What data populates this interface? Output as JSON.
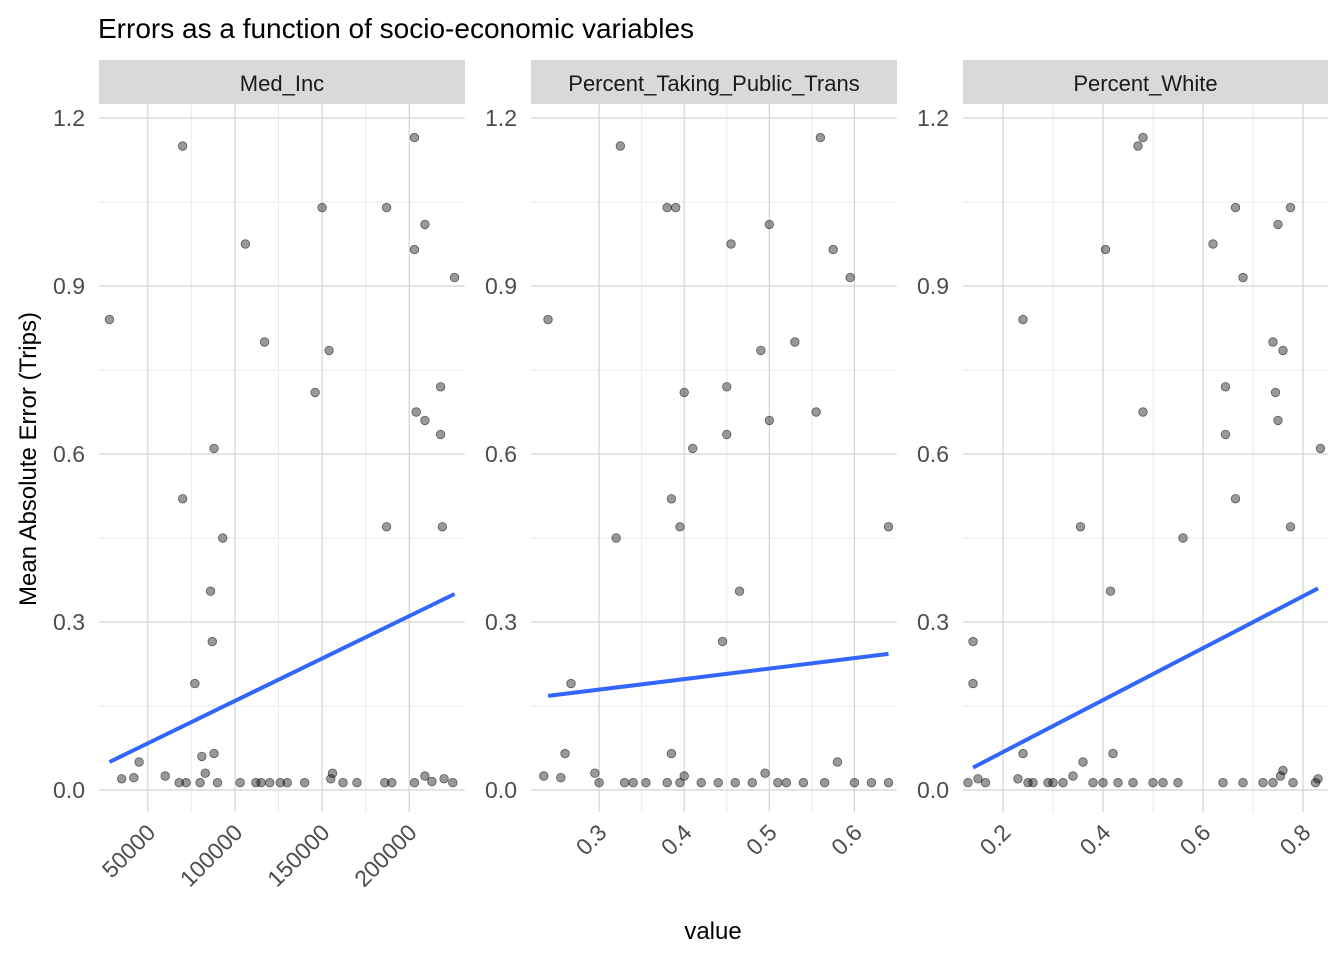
{
  "chart_data": {
    "type": "scatter",
    "title": "Errors as a function of socio-economic variables",
    "xlabel": "value",
    "ylabel": "Mean Absolute Error (Trips)",
    "ylim": [
      0,
      1.2
    ],
    "y_ticks": [
      0,
      0.3,
      0.6,
      0.9,
      1.2
    ],
    "y_tick_labels": [
      "0.0",
      "0.3",
      "0.6",
      "0.9",
      "1.2"
    ],
    "grid": true,
    "point_color": "#000000",
    "point_alpha": 0.4,
    "line_color": "#3366ff",
    "strip_color": "#d9d9d9",
    "facets": [
      {
        "name": "Med_Inc",
        "x_ticks": [
          50000,
          100000,
          150000,
          200000
        ],
        "x_tick_labels": [
          "50000",
          "100000",
          "150000",
          "200000"
        ],
        "xlim": [
          22000,
          232000
        ],
        "trend": {
          "x": [
            28000,
            226000
          ],
          "y": [
            0.05,
            0.35
          ]
        },
        "points": [
          [
            28000,
            0.84
          ],
          [
            70000,
            1.15
          ],
          [
            70000,
            0.52
          ],
          [
            77000,
            0.19
          ],
          [
            81000,
            0.06
          ],
          [
            83000,
            0.03
          ],
          [
            86000,
            0.355
          ],
          [
            87000,
            0.265
          ],
          [
            88000,
            0.61
          ],
          [
            88000,
            0.065
          ],
          [
            93000,
            0.45
          ],
          [
            106000,
            0.975
          ],
          [
            117000,
            0.8
          ],
          [
            146000,
            0.71
          ],
          [
            150000,
            1.04
          ],
          [
            154000,
            0.785
          ],
          [
            187000,
            1.04
          ],
          [
            187000,
            0.47
          ],
          [
            203000,
            1.165
          ],
          [
            203000,
            0.965
          ],
          [
            209000,
            1.01
          ],
          [
            204000,
            0.675
          ],
          [
            209000,
            0.66
          ],
          [
            218000,
            0.72
          ],
          [
            218000,
            0.635
          ],
          [
            219000,
            0.47
          ],
          [
            226000,
            0.915
          ],
          [
            35000,
            0.02
          ],
          [
            42000,
            0.022
          ],
          [
            45000,
            0.05
          ],
          [
            60000,
            0.025
          ],
          [
            68000,
            0.013
          ],
          [
            72000,
            0.013
          ],
          [
            80000,
            0.013
          ],
          [
            90000,
            0.013
          ],
          [
            103000,
            0.013
          ],
          [
            112000,
            0.013
          ],
          [
            115000,
            0.013
          ],
          [
            120000,
            0.013
          ],
          [
            126000,
            0.013
          ],
          [
            130000,
            0.013
          ],
          [
            140000,
            0.013
          ],
          [
            155000,
            0.02
          ],
          [
            156000,
            0.03
          ],
          [
            162000,
            0.013
          ],
          [
            170000,
            0.013
          ],
          [
            186000,
            0.013
          ],
          [
            190000,
            0.013
          ],
          [
            203000,
            0.013
          ],
          [
            209000,
            0.025
          ],
          [
            213000,
            0.015
          ],
          [
            220000,
            0.02
          ],
          [
            225000,
            0.013
          ]
        ]
      },
      {
        "name": "Percent_Taking_Public_Trans",
        "x_ticks": [
          0.3,
          0.4,
          0.5,
          0.6
        ],
        "x_tick_labels": [
          "0.3",
          "0.4",
          "0.5",
          "0.6"
        ],
        "xlim": [
          0.22,
          0.65
        ],
        "trend": {
          "x": [
            0.24,
            0.64
          ],
          "y": [
            0.168,
            0.243
          ]
        },
        "points": [
          [
            0.24,
            0.84
          ],
          [
            0.325,
            1.15
          ],
          [
            0.38,
            1.04
          ],
          [
            0.39,
            1.04
          ],
          [
            0.455,
            0.975
          ],
          [
            0.5,
            1.01
          ],
          [
            0.56,
            1.165
          ],
          [
            0.575,
            0.965
          ],
          [
            0.595,
            0.915
          ],
          [
            0.49,
            0.785
          ],
          [
            0.53,
            0.8
          ],
          [
            0.4,
            0.71
          ],
          [
            0.45,
            0.72
          ],
          [
            0.45,
            0.635
          ],
          [
            0.5,
            0.66
          ],
          [
            0.555,
            0.675
          ],
          [
            0.41,
            0.61
          ],
          [
            0.385,
            0.52
          ],
          [
            0.395,
            0.47
          ],
          [
            0.32,
            0.45
          ],
          [
            0.465,
            0.355
          ],
          [
            0.445,
            0.265
          ],
          [
            0.267,
            0.19
          ],
          [
            0.26,
            0.065
          ],
          [
            0.385,
            0.065
          ],
          [
            0.64,
            0.47
          ],
          [
            0.235,
            0.025
          ],
          [
            0.255,
            0.022
          ],
          [
            0.295,
            0.03
          ],
          [
            0.3,
            0.013
          ],
          [
            0.33,
            0.013
          ],
          [
            0.34,
            0.013
          ],
          [
            0.355,
            0.013
          ],
          [
            0.38,
            0.013
          ],
          [
            0.395,
            0.013
          ],
          [
            0.4,
            0.025
          ],
          [
            0.42,
            0.013
          ],
          [
            0.44,
            0.013
          ],
          [
            0.46,
            0.013
          ],
          [
            0.48,
            0.013
          ],
          [
            0.495,
            0.03
          ],
          [
            0.51,
            0.013
          ],
          [
            0.52,
            0.013
          ],
          [
            0.54,
            0.013
          ],
          [
            0.565,
            0.013
          ],
          [
            0.58,
            0.05
          ],
          [
            0.6,
            0.013
          ],
          [
            0.62,
            0.013
          ],
          [
            0.64,
            0.013
          ]
        ]
      },
      {
        "name": "Percent_White",
        "x_ticks": [
          0.2,
          0.4,
          0.6,
          0.8
        ],
        "x_tick_labels": [
          "0.2",
          "0.4",
          "0.6",
          "0.8"
        ],
        "xlim": [
          0.12,
          0.85
        ],
        "trend": {
          "x": [
            0.14,
            0.83
          ],
          "y": [
            0.04,
            0.36
          ]
        },
        "points": [
          [
            0.14,
            0.265
          ],
          [
            0.14,
            0.19
          ],
          [
            0.24,
            0.84
          ],
          [
            0.24,
            0.065
          ],
          [
            0.355,
            0.47
          ],
          [
            0.405,
            0.965
          ],
          [
            0.415,
            0.355
          ],
          [
            0.42,
            0.065
          ],
          [
            0.47,
            1.15
          ],
          [
            0.48,
            1.165
          ],
          [
            0.48,
            0.675
          ],
          [
            0.56,
            0.45
          ],
          [
            0.62,
            0.975
          ],
          [
            0.645,
            0.72
          ],
          [
            0.645,
            0.635
          ],
          [
            0.665,
            1.04
          ],
          [
            0.665,
            0.52
          ],
          [
            0.68,
            0.915
          ],
          [
            0.74,
            0.8
          ],
          [
            0.745,
            0.71
          ],
          [
            0.75,
            1.01
          ],
          [
            0.75,
            0.66
          ],
          [
            0.76,
            0.785
          ],
          [
            0.775,
            1.04
          ],
          [
            0.775,
            0.47
          ],
          [
            0.835,
            0.61
          ],
          [
            0.13,
            0.013
          ],
          [
            0.15,
            0.02
          ],
          [
            0.165,
            0.013
          ],
          [
            0.23,
            0.02
          ],
          [
            0.25,
            0.013
          ],
          [
            0.26,
            0.013
          ],
          [
            0.29,
            0.013
          ],
          [
            0.3,
            0.013
          ],
          [
            0.32,
            0.013
          ],
          [
            0.34,
            0.025
          ],
          [
            0.36,
            0.05
          ],
          [
            0.38,
            0.013
          ],
          [
            0.4,
            0.013
          ],
          [
            0.43,
            0.013
          ],
          [
            0.46,
            0.013
          ],
          [
            0.5,
            0.013
          ],
          [
            0.52,
            0.013
          ],
          [
            0.55,
            0.013
          ],
          [
            0.64,
            0.013
          ],
          [
            0.68,
            0.013
          ],
          [
            0.72,
            0.013
          ],
          [
            0.74,
            0.013
          ],
          [
            0.755,
            0.025
          ],
          [
            0.76,
            0.035
          ],
          [
            0.78,
            0.013
          ],
          [
            0.825,
            0.013
          ],
          [
            0.83,
            0.02
          ]
        ]
      }
    ]
  }
}
